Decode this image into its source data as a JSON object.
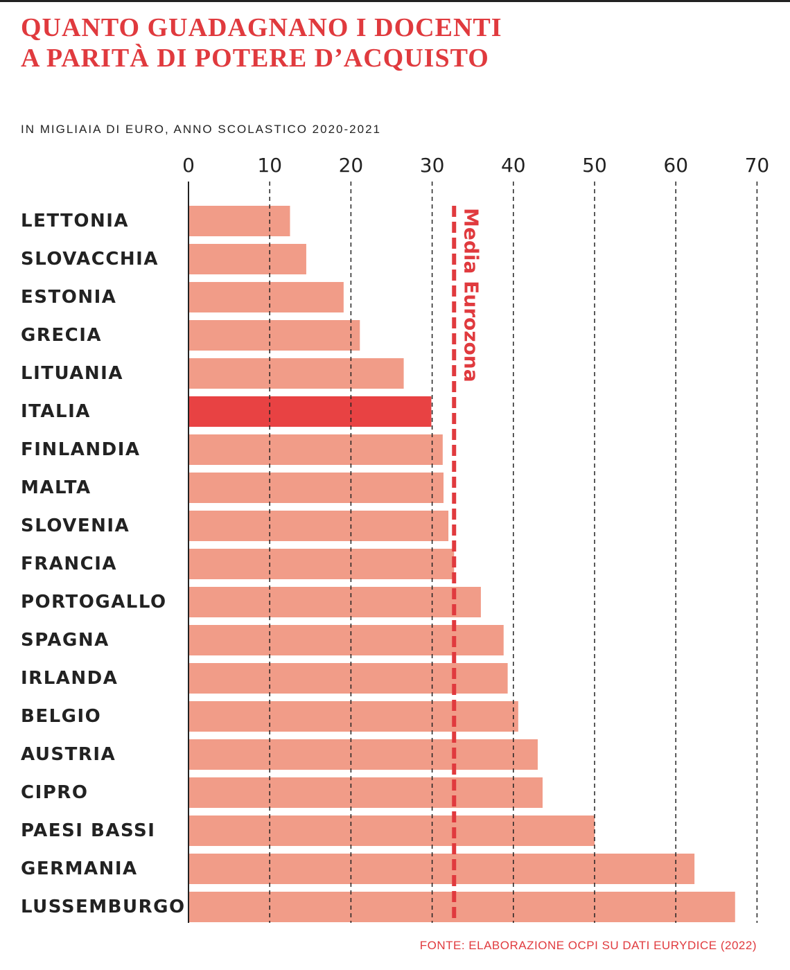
{
  "title_line1": "QUANTO GUADAGNANO I DOCENTI",
  "title_line2": "A PARITÀ DI POTERE D’ACQUISTO",
  "subtitle": "IN MIGLIAIA DI EURO, ANNO SCOLASTICO 2020-2021",
  "source": "FONTE: ELABORAZIONE OCPI SU DATI EURYDICE (2022)",
  "colors": {
    "bar": "#f19c88",
    "highlight": "#e84243",
    "accent": "#e03a3e",
    "text": "#222222"
  },
  "chart_data": {
    "type": "bar",
    "orientation": "horizontal",
    "xlim": [
      0,
      70
    ],
    "xticks": [
      "0",
      "10",
      "20",
      "30",
      "40",
      "50",
      "60",
      "70"
    ],
    "categories": [
      "LETTONIA",
      "SLOVACCHIA",
      "ESTONIA",
      "GRECIA",
      "LITUANIA",
      "ITALIA",
      "FINLANDIA",
      "MALTA",
      "SLOVENIA",
      "FRANCIA",
      "PORTOGALLO",
      "SPAGNA",
      "IRLANDA",
      "BELGIO",
      "AUSTRIA",
      "CIPRO",
      "PAESI BASSI",
      "GERMANIA",
      "LUSSEMBURGO"
    ],
    "values": [
      12.5,
      14.5,
      19.1,
      21.1,
      26.5,
      29.9,
      31.3,
      31.4,
      32.0,
      32.7,
      36.0,
      38.8,
      39.3,
      40.6,
      43.0,
      43.6,
      50.0,
      62.3,
      67.3
    ],
    "highlight": "ITALIA",
    "reference_line": {
      "label": "Media Eurozona",
      "value": 32.7
    },
    "grid": "vertical-dashed"
  }
}
